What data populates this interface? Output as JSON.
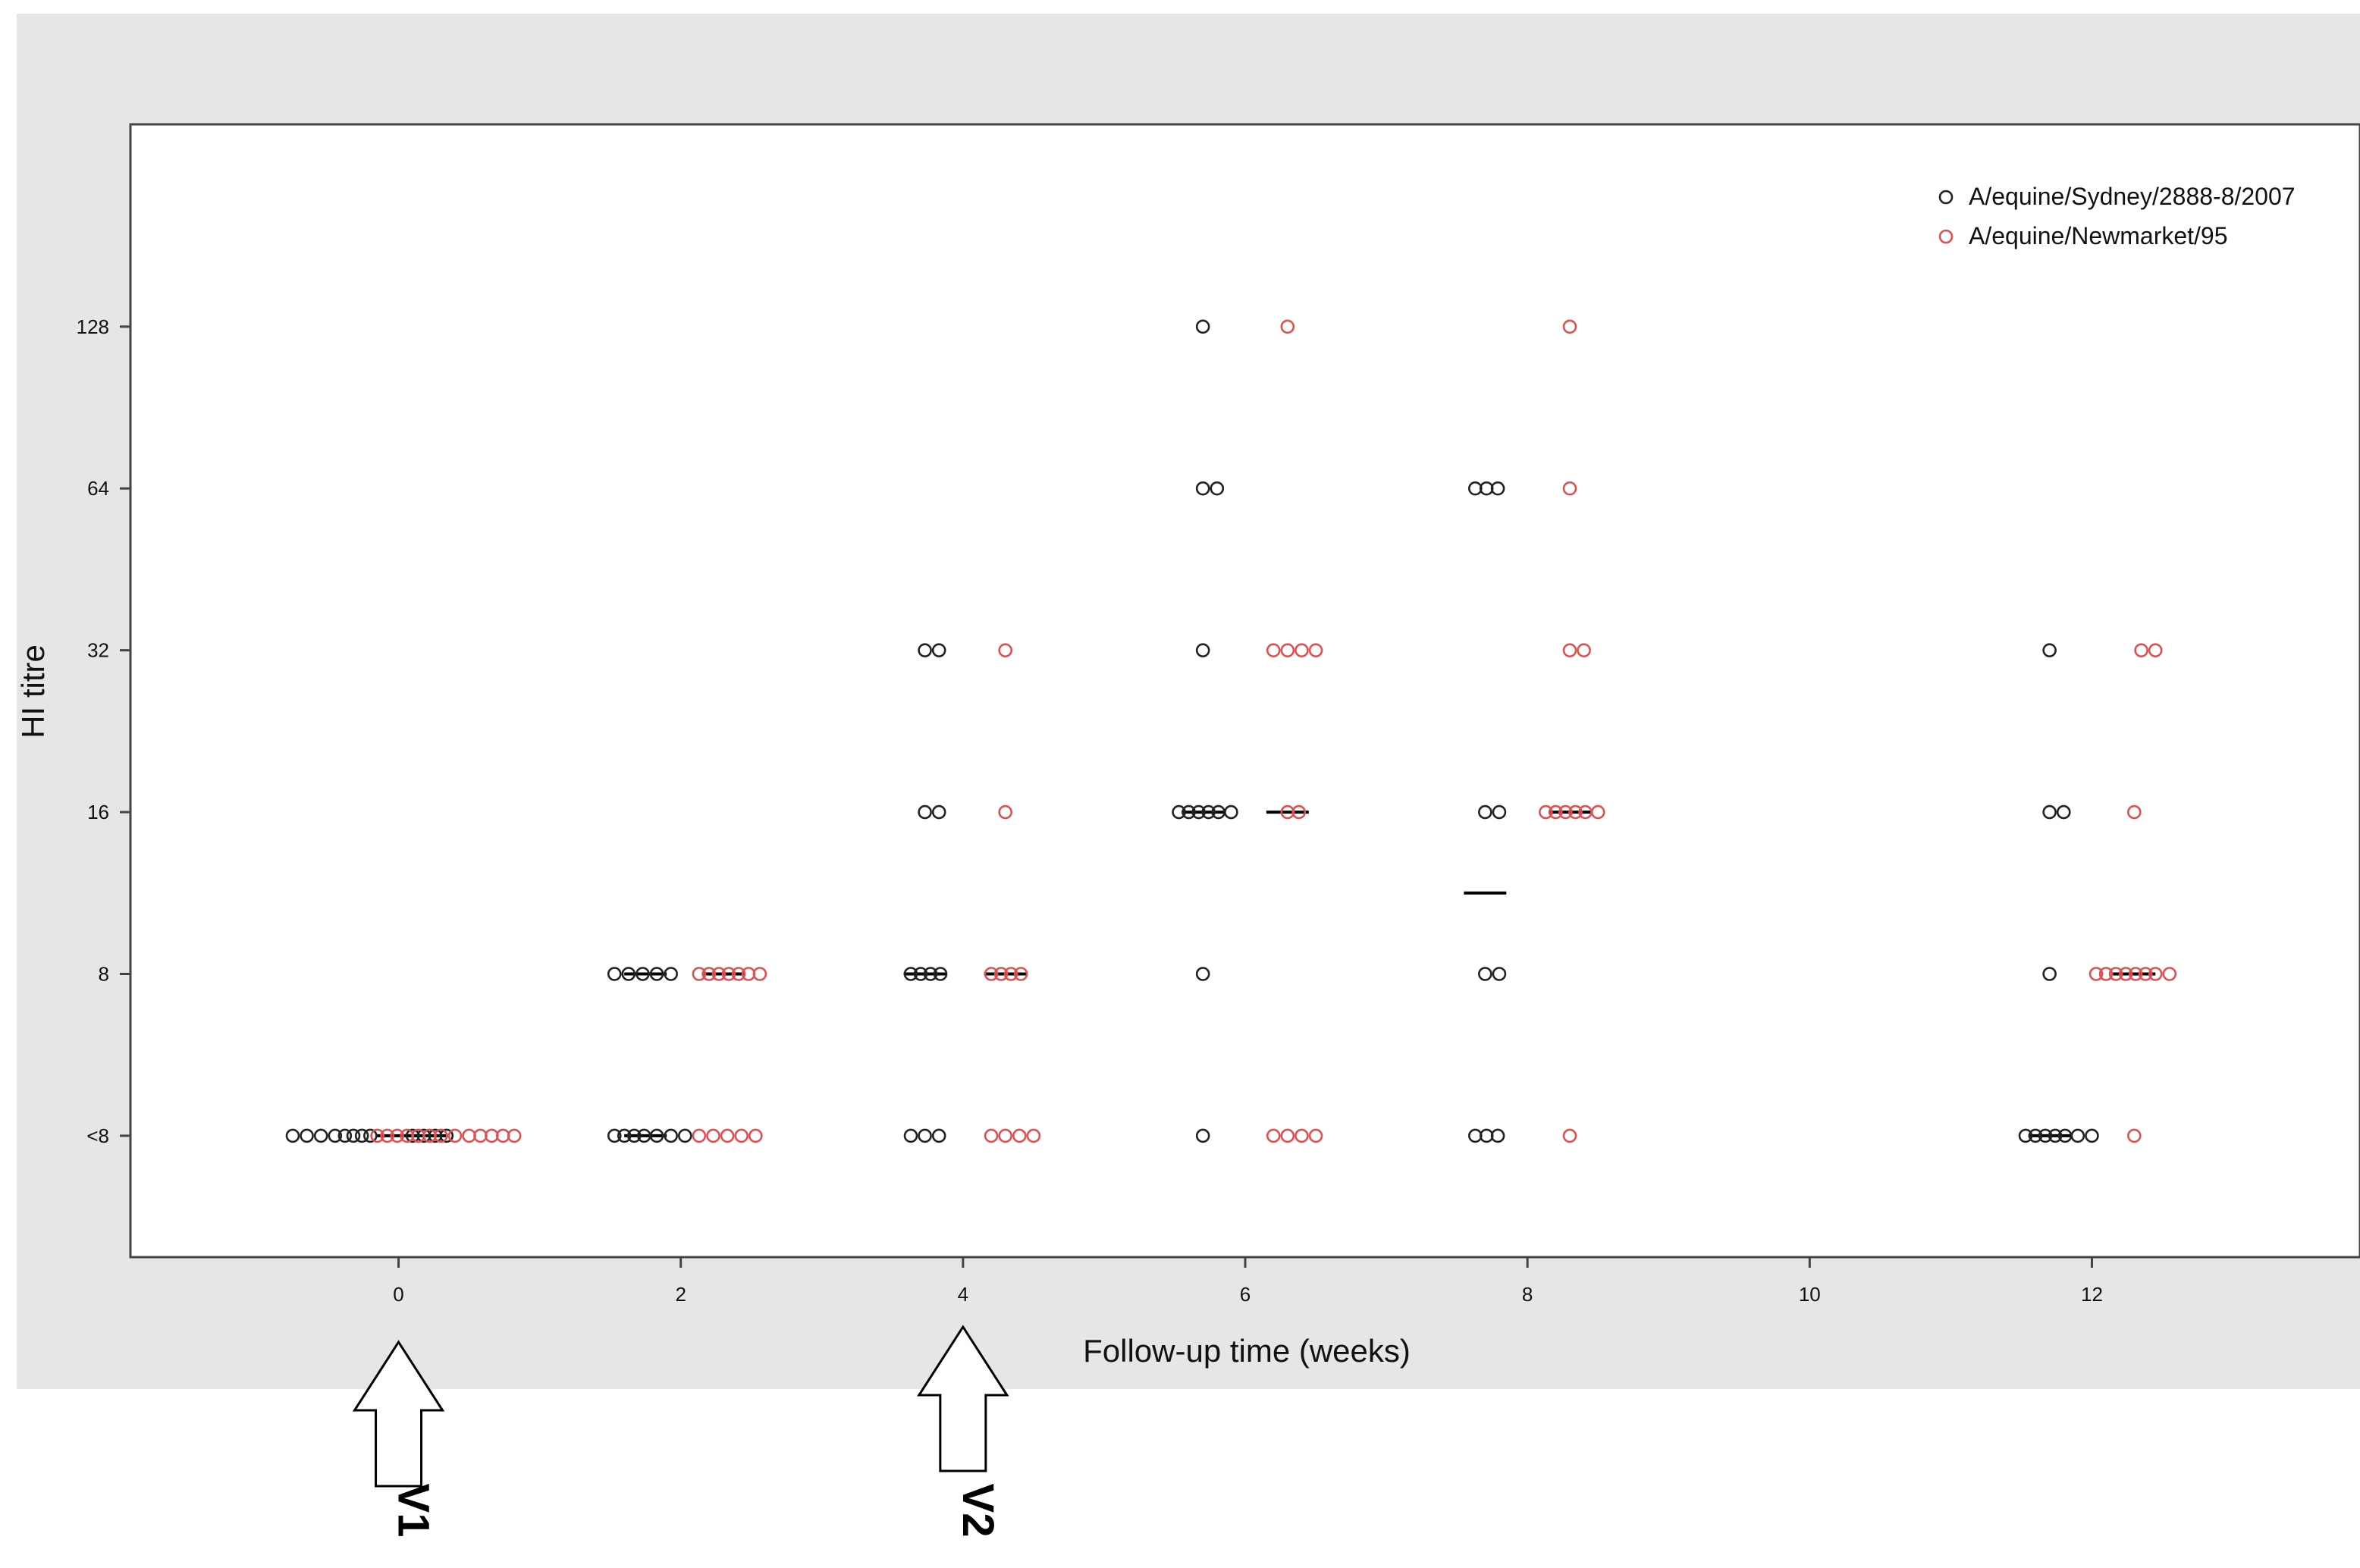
{
  "chart_data": {
    "type": "scatter",
    "xlabel": "Follow-up time (weeks)",
    "ylabel": "HI titre",
    "xlim": [
      -1.9,
      13.9
    ],
    "x_ticks": [
      0,
      2,
      4,
      6,
      8,
      10,
      12
    ],
    "y_levels": [
      "<8",
      "8",
      "16",
      "32",
      "64",
      "128"
    ],
    "ylim_levels": [
      -0.75,
      6.25
    ],
    "grid": false,
    "legend_position": "top-right",
    "colors": {
      "panel_bg": "#e6e6e6",
      "plot_bg": "#ffffff",
      "series_0": "#222222",
      "series_1": "#e05050"
    },
    "series": [
      {
        "name": "A/equine/Sydney/2888-8/2007",
        "color": "#222222",
        "points": [
          {
            "x": -0.75,
            "y": "<8"
          },
          {
            "x": -0.65,
            "y": "<8"
          },
          {
            "x": -0.55,
            "y": "<8"
          },
          {
            "x": -0.45,
            "y": "<8"
          },
          {
            "x": -0.38,
            "y": "<8"
          },
          {
            "x": -0.32,
            "y": "<8"
          },
          {
            "x": -0.26,
            "y": "<8"
          },
          {
            "x": -0.2,
            "y": "<8"
          },
          {
            "x": 0.1,
            "y": "<8"
          },
          {
            "x": 0.18,
            "y": "<8"
          },
          {
            "x": 0.26,
            "y": "<8"
          },
          {
            "x": 0.34,
            "y": "<8"
          },
          {
            "x": 1.53,
            "y": "8"
          },
          {
            "x": 1.63,
            "y": "8"
          },
          {
            "x": 1.73,
            "y": "8"
          },
          {
            "x": 1.83,
            "y": "8"
          },
          {
            "x": 1.93,
            "y": "8"
          },
          {
            "x": 1.53,
            "y": "<8"
          },
          {
            "x": 1.6,
            "y": "<8"
          },
          {
            "x": 1.67,
            "y": "<8"
          },
          {
            "x": 1.74,
            "y": "<8"
          },
          {
            "x": 1.83,
            "y": "<8"
          },
          {
            "x": 1.93,
            "y": "<8"
          },
          {
            "x": 2.03,
            "y": "<8"
          },
          {
            "x": 3.73,
            "y": "32"
          },
          {
            "x": 3.83,
            "y": "32"
          },
          {
            "x": 3.73,
            "y": "16"
          },
          {
            "x": 3.83,
            "y": "16"
          },
          {
            "x": 3.63,
            "y": "8"
          },
          {
            "x": 3.7,
            "y": "8"
          },
          {
            "x": 3.77,
            "y": "8"
          },
          {
            "x": 3.84,
            "y": "8"
          },
          {
            "x": 3.63,
            "y": "<8"
          },
          {
            "x": 3.73,
            "y": "<8"
          },
          {
            "x": 3.83,
            "y": "<8"
          },
          {
            "x": 5.7,
            "y": "128"
          },
          {
            "x": 5.7,
            "y": "64"
          },
          {
            "x": 5.8,
            "y": "64"
          },
          {
            "x": 5.7,
            "y": "32"
          },
          {
            "x": 5.53,
            "y": "16"
          },
          {
            "x": 5.6,
            "y": "16"
          },
          {
            "x": 5.67,
            "y": "16"
          },
          {
            "x": 5.74,
            "y": "16"
          },
          {
            "x": 5.81,
            "y": "16"
          },
          {
            "x": 5.9,
            "y": "16"
          },
          {
            "x": 5.7,
            "y": "8"
          },
          {
            "x": 5.7,
            "y": "<8"
          },
          {
            "x": 7.63,
            "y": "64"
          },
          {
            "x": 7.71,
            "y": "64"
          },
          {
            "x": 7.79,
            "y": "64"
          },
          {
            "x": 7.7,
            "y": "16"
          },
          {
            "x": 7.8,
            "y": "16"
          },
          {
            "x": 7.7,
            "y": "8"
          },
          {
            "x": 7.8,
            "y": "8"
          },
          {
            "x": 7.63,
            "y": "<8"
          },
          {
            "x": 7.71,
            "y": "<8"
          },
          {
            "x": 7.79,
            "y": "<8"
          },
          {
            "x": 11.7,
            "y": "32"
          },
          {
            "x": 11.7,
            "y": "16"
          },
          {
            "x": 11.8,
            "y": "16"
          },
          {
            "x": 11.7,
            "y": "8"
          },
          {
            "x": 11.53,
            "y": "<8"
          },
          {
            "x": 11.6,
            "y": "<8"
          },
          {
            "x": 11.67,
            "y": "<8"
          },
          {
            "x": 11.74,
            "y": "<8"
          },
          {
            "x": 11.81,
            "y": "<8"
          },
          {
            "x": 11.9,
            "y": "<8"
          },
          {
            "x": 12.0,
            "y": "<8"
          }
        ]
      },
      {
        "name": "A/equine/Newmarket/95",
        "color": "#e05050",
        "points": [
          {
            "x": -0.15,
            "y": "<8"
          },
          {
            "x": -0.08,
            "y": "<8"
          },
          {
            "x": -0.01,
            "y": "<8"
          },
          {
            "x": 0.06,
            "y": "<8"
          },
          {
            "x": 0.14,
            "y": "<8"
          },
          {
            "x": 0.22,
            "y": "<8"
          },
          {
            "x": 0.3,
            "y": "<8"
          },
          {
            "x": 0.4,
            "y": "<8"
          },
          {
            "x": 0.5,
            "y": "<8"
          },
          {
            "x": 0.58,
            "y": "<8"
          },
          {
            "x": 0.66,
            "y": "<8"
          },
          {
            "x": 0.74,
            "y": "<8"
          },
          {
            "x": 0.82,
            "y": "<8"
          },
          {
            "x": 2.13,
            "y": "8"
          },
          {
            "x": 2.2,
            "y": "8"
          },
          {
            "x": 2.27,
            "y": "8"
          },
          {
            "x": 2.34,
            "y": "8"
          },
          {
            "x": 2.41,
            "y": "8"
          },
          {
            "x": 2.48,
            "y": "8"
          },
          {
            "x": 2.56,
            "y": "8"
          },
          {
            "x": 2.13,
            "y": "<8"
          },
          {
            "x": 2.23,
            "y": "<8"
          },
          {
            "x": 2.33,
            "y": "<8"
          },
          {
            "x": 2.43,
            "y": "<8"
          },
          {
            "x": 2.53,
            "y": "<8"
          },
          {
            "x": 4.3,
            "y": "32"
          },
          {
            "x": 4.3,
            "y": "16"
          },
          {
            "x": 4.2,
            "y": "8"
          },
          {
            "x": 4.27,
            "y": "8"
          },
          {
            "x": 4.34,
            "y": "8"
          },
          {
            "x": 4.41,
            "y": "8"
          },
          {
            "x": 4.2,
            "y": "<8"
          },
          {
            "x": 4.3,
            "y": "<8"
          },
          {
            "x": 4.4,
            "y": "<8"
          },
          {
            "x": 4.5,
            "y": "<8"
          },
          {
            "x": 6.3,
            "y": "128"
          },
          {
            "x": 6.2,
            "y": "32"
          },
          {
            "x": 6.3,
            "y": "32"
          },
          {
            "x": 6.4,
            "y": "32"
          },
          {
            "x": 6.5,
            "y": "32"
          },
          {
            "x": 6.3,
            "y": "16"
          },
          {
            "x": 6.38,
            "y": "16"
          },
          {
            "x": 6.2,
            "y": "<8"
          },
          {
            "x": 6.3,
            "y": "<8"
          },
          {
            "x": 6.4,
            "y": "<8"
          },
          {
            "x": 6.5,
            "y": "<8"
          },
          {
            "x": 8.3,
            "y": "128"
          },
          {
            "x": 8.3,
            "y": "64"
          },
          {
            "x": 8.3,
            "y": "32"
          },
          {
            "x": 8.4,
            "y": "32"
          },
          {
            "x": 8.13,
            "y": "16"
          },
          {
            "x": 8.2,
            "y": "16"
          },
          {
            "x": 8.27,
            "y": "16"
          },
          {
            "x": 8.34,
            "y": "16"
          },
          {
            "x": 8.41,
            "y": "16"
          },
          {
            "x": 8.5,
            "y": "16"
          },
          {
            "x": 8.3,
            "y": "<8"
          },
          {
            "x": 12.35,
            "y": "32"
          },
          {
            "x": 12.45,
            "y": "32"
          },
          {
            "x": 12.3,
            "y": "16"
          },
          {
            "x": 12.03,
            "y": "8"
          },
          {
            "x": 12.1,
            "y": "8"
          },
          {
            "x": 12.17,
            "y": "8"
          },
          {
            "x": 12.24,
            "y": "8"
          },
          {
            "x": 12.31,
            "y": "8"
          },
          {
            "x": 12.38,
            "y": "8"
          },
          {
            "x": 12.45,
            "y": "8"
          },
          {
            "x": 12.55,
            "y": "8"
          },
          {
            "x": 12.3,
            "y": "<8"
          }
        ]
      }
    ],
    "medians": [
      {
        "x": 0.0,
        "level": 0
      },
      {
        "x": 0.2,
        "level": 0
      },
      {
        "x": 1.75,
        "level": 0
      },
      {
        "x": 1.75,
        "level": 1
      },
      {
        "x": 2.3,
        "level": 1
      },
      {
        "x": 3.73,
        "level": 1
      },
      {
        "x": 4.3,
        "level": 1
      },
      {
        "x": 5.7,
        "level": 2
      },
      {
        "x": 6.3,
        "level": 2
      },
      {
        "x": 7.7,
        "level": 1.5
      },
      {
        "x": 8.3,
        "level": 2
      },
      {
        "x": 11.7,
        "level": 0
      },
      {
        "x": 12.3,
        "level": 1
      }
    ],
    "annotations": [
      {
        "label": "V1",
        "x": 0
      },
      {
        "label": "V2",
        "x": 4
      }
    ]
  }
}
